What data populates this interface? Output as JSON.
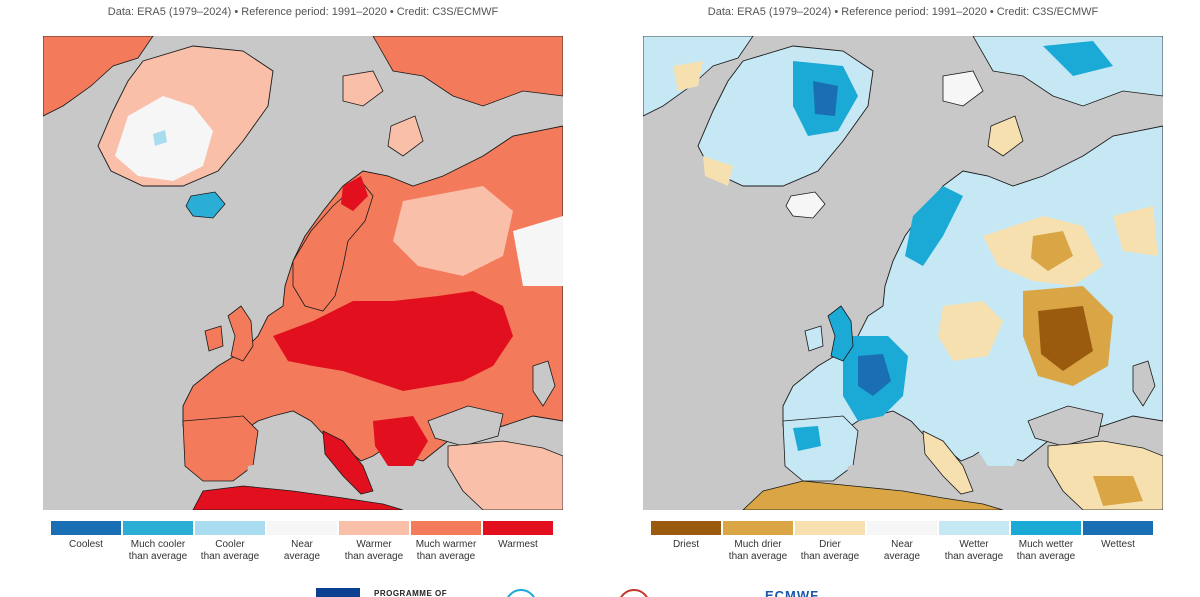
{
  "credit_text": "Data: ERA5 (1979–2024) • Reference period: 1991–2020 • Credit: C3S/ECMWF",
  "temperature_map": {
    "legend": [
      {
        "label": "Coolest",
        "color": "#1a6fb4"
      },
      {
        "label": "Much cooler\nthan average",
        "color": "#2aaed6"
      },
      {
        "label": "Cooler\nthan average",
        "color": "#a9dcef"
      },
      {
        "label": "Near\naverage",
        "color": "#f6f6f6"
      },
      {
        "label": "Warmer\nthan average",
        "color": "#f9bfa8"
      },
      {
        "label": "Much warmer\nthan average",
        "color": "#f37a5a"
      },
      {
        "label": "Warmest",
        "color": "#e2101e"
      }
    ]
  },
  "precipitation_map": {
    "legend": [
      {
        "label": "Driest",
        "color": "#9a5b0f"
      },
      {
        "label": "Much drier\nthan average",
        "color": "#d9a545"
      },
      {
        "label": "Drier\nthan average",
        "color": "#f6e0b0"
      },
      {
        "label": "Near\naverage",
        "color": "#f6f6f6"
      },
      {
        "label": "Wetter\nthan average",
        "color": "#c5e8f4"
      },
      {
        "label": "Much wetter\nthan average",
        "color": "#1ba9d6"
      },
      {
        "label": "Wettest",
        "color": "#1a6fb4"
      }
    ]
  },
  "colors": {
    "ocean": "#c8c8c8",
    "coastline": "#1a1a1a"
  },
  "footer": {
    "program_text": "PROGRAMME OF",
    "ecmwf_text": "ECMWF"
  }
}
